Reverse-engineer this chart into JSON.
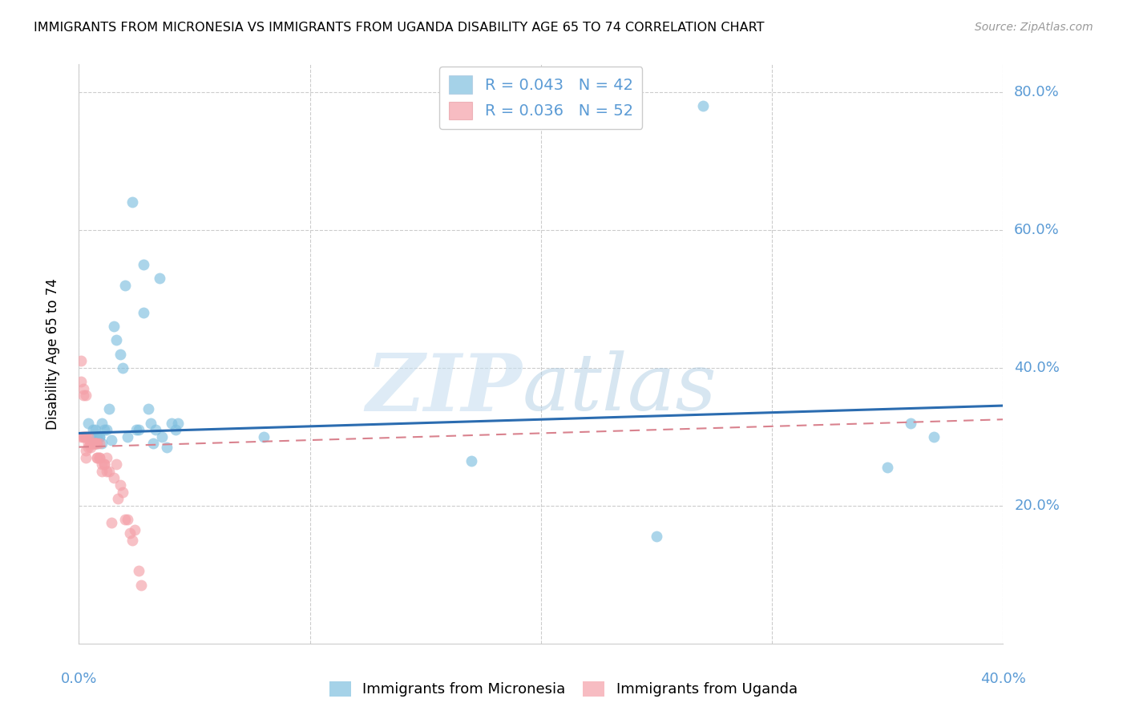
{
  "title": "IMMIGRANTS FROM MICRONESIA VS IMMIGRANTS FROM UGANDA DISABILITY AGE 65 TO 74 CORRELATION CHART",
  "source": "Source: ZipAtlas.com",
  "ylabel": "Disability Age 65 to 74",
  "ylabel_ticks": [
    "20.0%",
    "40.0%",
    "60.0%",
    "80.0%"
  ],
  "ylabel_tick_vals": [
    0.2,
    0.4,
    0.6,
    0.8
  ],
  "ytick_gridline_vals": [
    0.2,
    0.4,
    0.6,
    0.8
  ],
  "xmin": 0.0,
  "xmax": 0.4,
  "ymin": 0.0,
  "ymax": 0.84,
  "axis_color": "#5b9bd5",
  "gridline_color": "#cccccc",
  "legend1_label": "R = 0.043   N = 42",
  "legend2_label": "R = 0.036   N = 52",
  "micronesia_color": "#7fbfdf",
  "uganda_color": "#f4a0a8",
  "trend_micronesia_color": "#2b6cb0",
  "trend_uganda_color": "#d9828e",
  "micronesia_x": [
    0.004,
    0.005,
    0.006,
    0.007,
    0.008,
    0.008,
    0.009,
    0.009,
    0.01,
    0.01,
    0.011,
    0.012,
    0.013,
    0.014,
    0.015,
    0.016,
    0.018,
    0.019,
    0.02,
    0.021,
    0.023,
    0.025,
    0.026,
    0.028,
    0.028,
    0.03,
    0.031,
    0.032,
    0.033,
    0.035,
    0.036,
    0.038,
    0.04,
    0.042,
    0.043,
    0.08,
    0.17,
    0.25,
    0.27,
    0.35,
    0.36,
    0.37
  ],
  "micronesia_y": [
    0.32,
    0.3,
    0.31,
    0.31,
    0.3,
    0.29,
    0.3,
    0.3,
    0.32,
    0.29,
    0.31,
    0.31,
    0.34,
    0.295,
    0.46,
    0.44,
    0.42,
    0.4,
    0.52,
    0.3,
    0.64,
    0.31,
    0.31,
    0.55,
    0.48,
    0.34,
    0.32,
    0.29,
    0.31,
    0.53,
    0.3,
    0.285,
    0.32,
    0.31,
    0.32,
    0.3,
    0.265,
    0.155,
    0.78,
    0.255,
    0.32,
    0.3
  ],
  "uganda_x": [
    0.001,
    0.001,
    0.001,
    0.002,
    0.002,
    0.002,
    0.002,
    0.003,
    0.003,
    0.003,
    0.003,
    0.003,
    0.004,
    0.004,
    0.004,
    0.005,
    0.005,
    0.005,
    0.005,
    0.006,
    0.006,
    0.006,
    0.007,
    0.007,
    0.007,
    0.007,
    0.008,
    0.008,
    0.008,
    0.009,
    0.009,
    0.009,
    0.01,
    0.01,
    0.011,
    0.011,
    0.012,
    0.012,
    0.013,
    0.014,
    0.015,
    0.016,
    0.017,
    0.018,
    0.019,
    0.02,
    0.021,
    0.022,
    0.023,
    0.024,
    0.026,
    0.027
  ],
  "uganda_y": [
    0.3,
    0.38,
    0.41,
    0.37,
    0.3,
    0.3,
    0.36,
    0.27,
    0.28,
    0.3,
    0.3,
    0.36,
    0.29,
    0.3,
    0.285,
    0.29,
    0.29,
    0.29,
    0.285,
    0.29,
    0.29,
    0.29,
    0.29,
    0.29,
    0.29,
    0.29,
    0.27,
    0.27,
    0.29,
    0.27,
    0.27,
    0.29,
    0.25,
    0.26,
    0.26,
    0.26,
    0.25,
    0.27,
    0.25,
    0.175,
    0.24,
    0.26,
    0.21,
    0.23,
    0.22,
    0.18,
    0.18,
    0.16,
    0.15,
    0.165,
    0.105,
    0.085
  ],
  "micronesia_trend_x": [
    0.0,
    0.4
  ],
  "micronesia_trend_y": [
    0.305,
    0.345
  ],
  "uganda_trend_x": [
    0.0,
    0.4
  ],
  "uganda_trend_y": [
    0.285,
    0.325
  ],
  "xtick_vals": [
    0.0,
    0.1,
    0.2,
    0.3,
    0.4
  ],
  "xtick_labels_show": [
    "0.0%",
    "40.0%"
  ]
}
